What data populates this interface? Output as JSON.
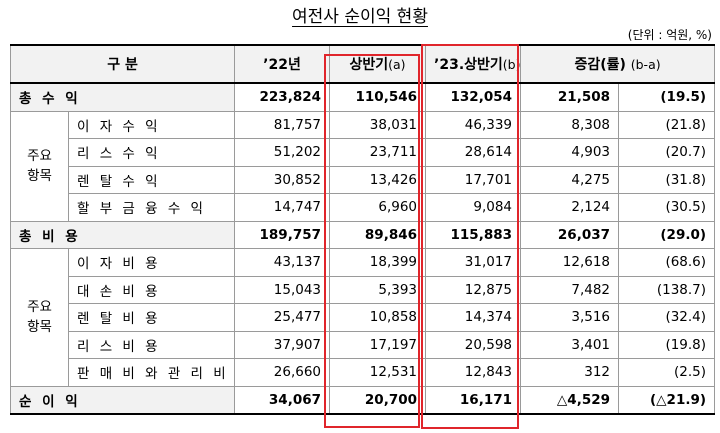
{
  "title": "여전사 순이익 현황",
  "unit": "(단위 : 억원, %)",
  "header": {
    "category": "구   분",
    "col_2022": "’22년",
    "col_h1_main": "상반기",
    "col_h1_sub": "(a)",
    "col_2023_main": "’23.상반기",
    "col_2023_sub": "(b)",
    "col_change_main": "증감(률)",
    "col_change_sub": "(b-a)"
  },
  "groups": {
    "revenue_group": "주요 항목",
    "cost_group": "주요 항목"
  },
  "rows": {
    "total_revenue": {
      "label": "총 수 익",
      "y2022": "223,824",
      "h1_2022": "110,546",
      "h1_2023": "132,054",
      "change": "21,508",
      "rate": "(19.5)"
    },
    "interest_income": {
      "label": "이 자 수 익",
      "y2022": "81,757",
      "h1_2022": "38,031",
      "h1_2023": "46,339",
      "change": "8,308",
      "rate": "(21.8)"
    },
    "lease_income": {
      "label": "리 스 수 익",
      "y2022": "51,202",
      "h1_2022": "23,711",
      "h1_2023": "28,614",
      "change": "4,903",
      "rate": "(20.7)"
    },
    "rental_income": {
      "label": "렌 탈 수 익",
      "y2022": "30,852",
      "h1_2022": "13,426",
      "h1_2023": "17,701",
      "change": "4,275",
      "rate": "(31.8)"
    },
    "installment_income": {
      "label": "할 부 금 융 수 익",
      "y2022": "14,747",
      "h1_2022": "6,960",
      "h1_2023": "9,084",
      "change": "2,124",
      "rate": "(30.5)"
    },
    "total_cost": {
      "label": "총 비 용",
      "y2022": "189,757",
      "h1_2022": "89,846",
      "h1_2023": "115,883",
      "change": "26,037",
      "rate": "(29.0)"
    },
    "interest_cost": {
      "label": "이 자 비 용",
      "y2022": "43,137",
      "h1_2022": "18,399",
      "h1_2023": "31,017",
      "change": "12,618",
      "rate": "(68.6)"
    },
    "loss_cost": {
      "label": "대 손 비 용",
      "y2022": "15,043",
      "h1_2022": "5,393",
      "h1_2023": "12,875",
      "change": "7,482",
      "rate": "(138.7)"
    },
    "rental_cost": {
      "label": "렌 탈 비 용",
      "y2022": "25,477",
      "h1_2022": "10,858",
      "h1_2023": "14,374",
      "change": "3,516",
      "rate": "(32.4)"
    },
    "lease_cost": {
      "label": "리 스 비 용",
      "y2022": "37,907",
      "h1_2022": "17,197",
      "h1_2023": "20,598",
      "change": "3,401",
      "rate": "(19.8)"
    },
    "sga_cost": {
      "label": "판 매 비 와 관 리 비",
      "y2022": "26,660",
      "h1_2022": "12,531",
      "h1_2023": "12,843",
      "change": "312",
      "rate": "(2.5)"
    },
    "net_income": {
      "label": "순 이 익",
      "y2022": "34,067",
      "h1_2022": "20,700",
      "h1_2023": "16,171",
      "change": "△4,529",
      "rate": "(△21.9)"
    }
  },
  "colors": {
    "highlight_border": "#e0252b",
    "header_bg": "#f2f2f2"
  }
}
